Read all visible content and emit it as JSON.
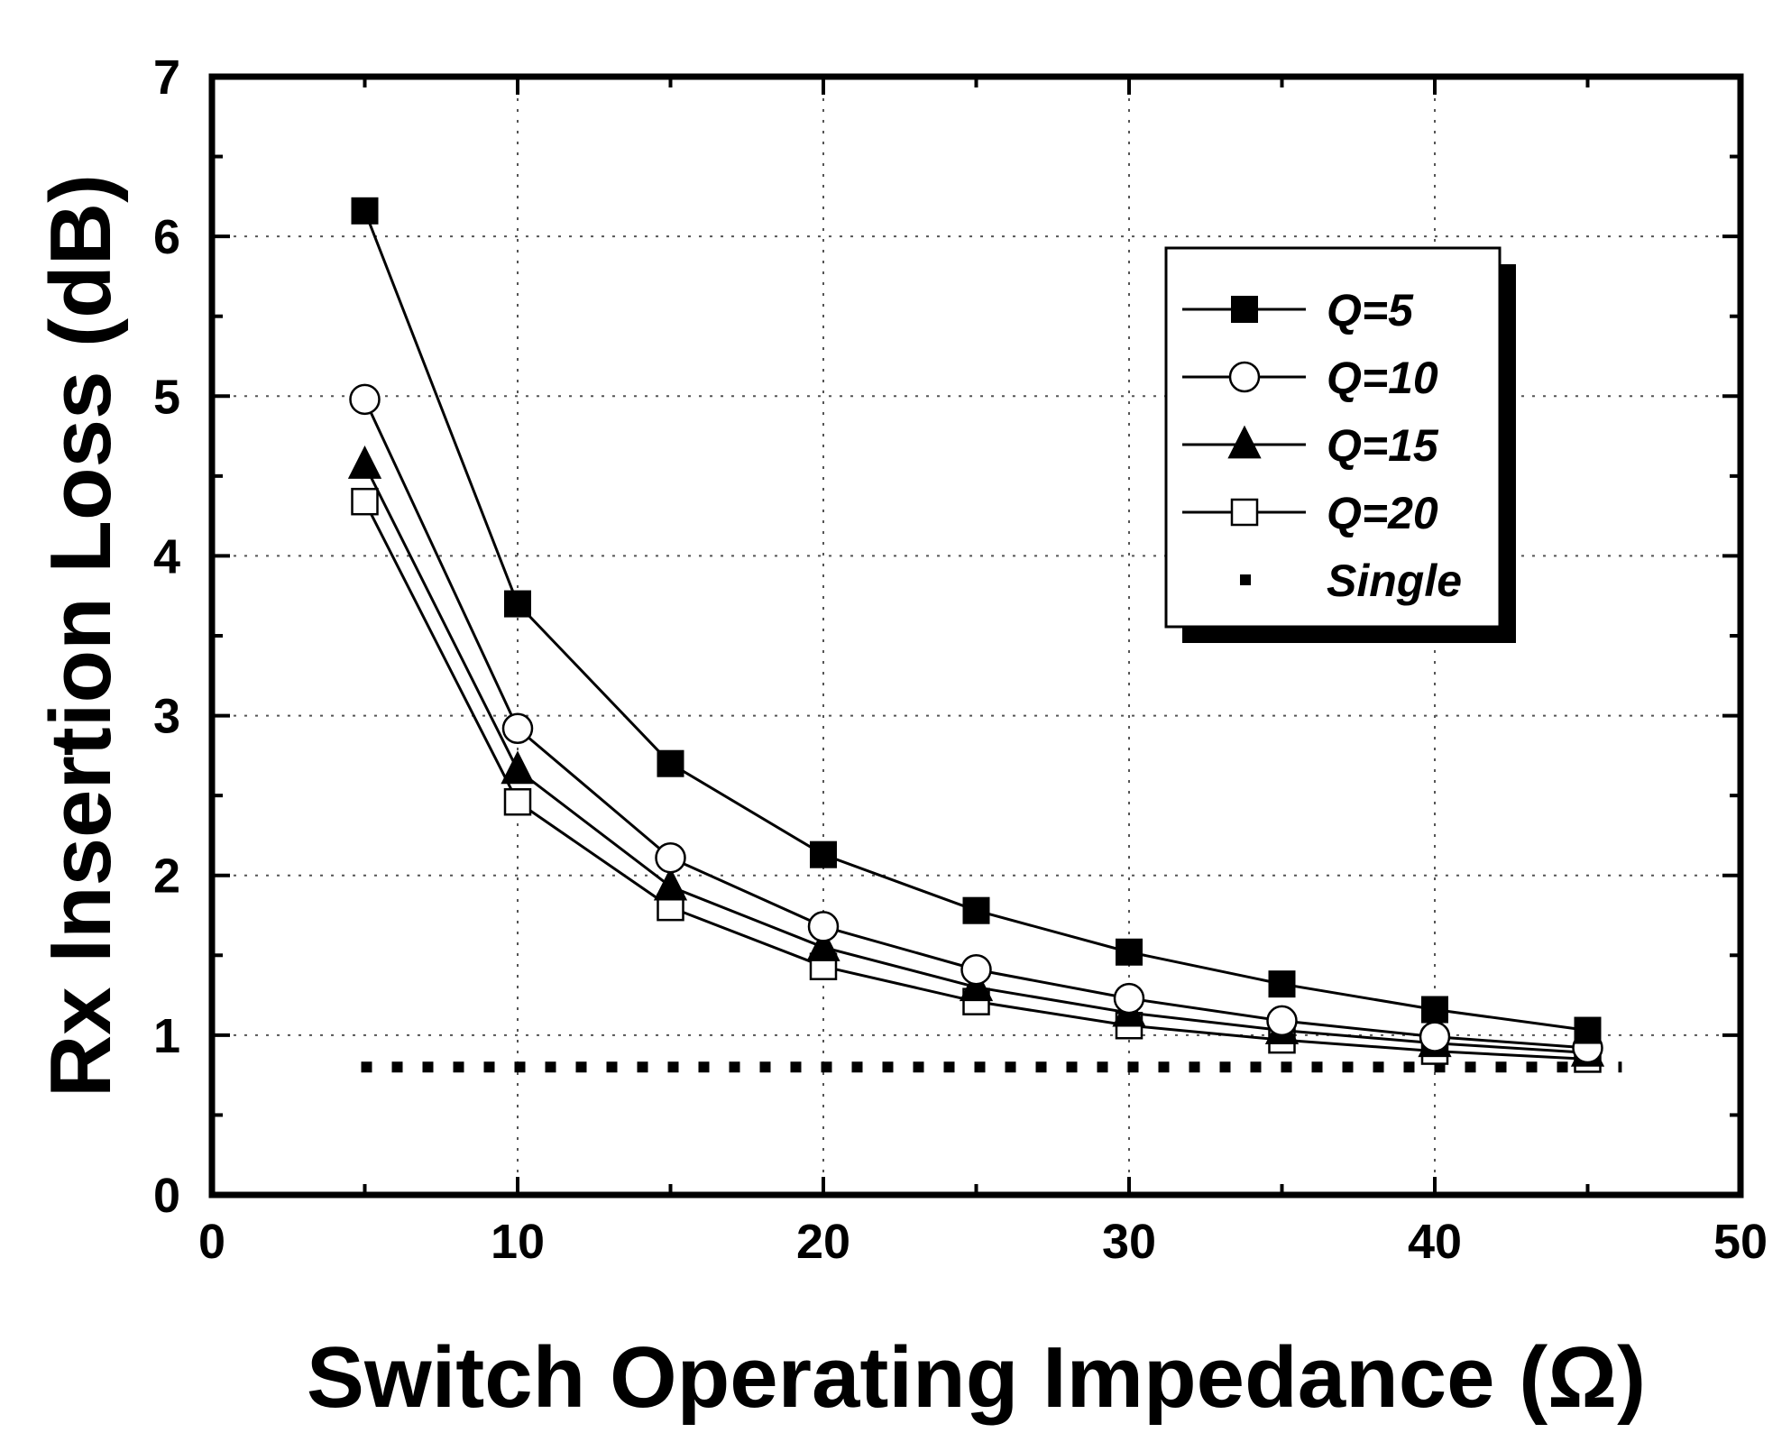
{
  "chart_data": {
    "type": "line",
    "title": "",
    "xlabel": "Switch Operating Impedance (Ω)",
    "ylabel": "Rx Insertion Loss (dB)",
    "xlim": [
      0,
      50
    ],
    "ylim": [
      0,
      7
    ],
    "xticks": [
      "0",
      "10",
      "20",
      "30",
      "40",
      "50"
    ],
    "yticks": [
      "0",
      "1",
      "2",
      "3",
      "4",
      "5",
      "6",
      "7"
    ],
    "grid": true,
    "legend_position": "top-right",
    "x": [
      5,
      10,
      15,
      20,
      25,
      30,
      35,
      40,
      45
    ],
    "series": [
      {
        "name": "Q=5",
        "marker": "filled-square",
        "values": [
          6.16,
          3.7,
          2.7,
          2.13,
          1.78,
          1.52,
          1.32,
          1.16,
          1.03
        ]
      },
      {
        "name": "Q=10",
        "marker": "open-circle",
        "values": [
          4.98,
          2.92,
          2.11,
          1.68,
          1.41,
          1.23,
          1.09,
          0.99,
          0.92
        ]
      },
      {
        "name": "Q=15",
        "marker": "filled-triangle",
        "values": [
          4.57,
          2.66,
          1.93,
          1.55,
          1.3,
          1.14,
          1.03,
          0.95,
          0.89
        ]
      },
      {
        "name": "Q=20",
        "marker": "open-square",
        "values": [
          4.34,
          2.46,
          1.8,
          1.43,
          1.21,
          1.06,
          0.97,
          0.9,
          0.85
        ]
      },
      {
        "name": "Single",
        "marker": "dotted-line",
        "x_range": [
          5,
          46
        ],
        "value": 0.8
      }
    ]
  }
}
